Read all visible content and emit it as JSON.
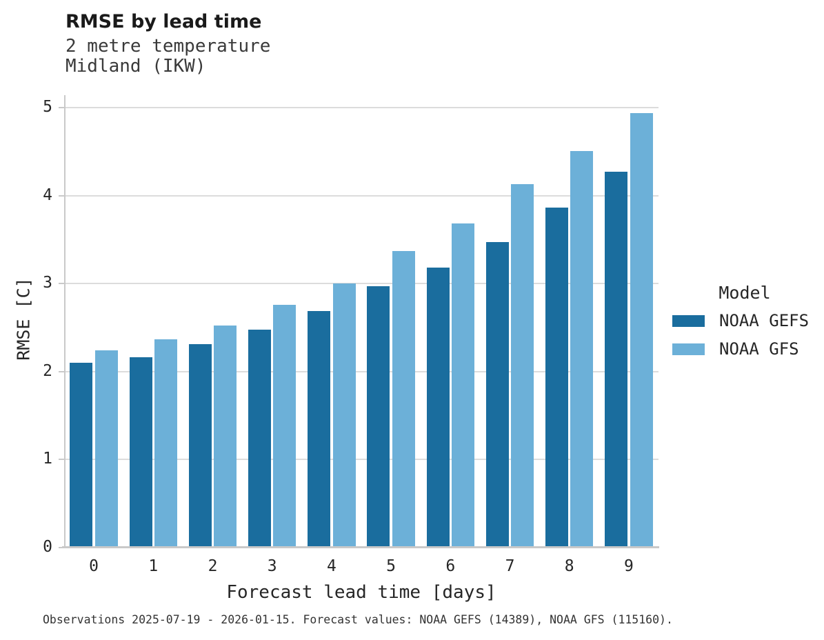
{
  "header": {
    "title": "RMSE by lead time",
    "subtitle_line1": "2 metre temperature",
    "subtitle_line2": "Midland (IKW)"
  },
  "chart_data": {
    "type": "bar",
    "title": "RMSE by lead time",
    "subtitle": [
      "2 metre temperature",
      "Midland (IKW)"
    ],
    "xlabel": "Forecast lead time [days]",
    "ylabel": "RMSE [C]",
    "categories": [
      "0",
      "1",
      "2",
      "3",
      "4",
      "5",
      "6",
      "7",
      "8",
      "9"
    ],
    "series": [
      {
        "name": "NOAA GEFS",
        "color": "#1a6d9e",
        "values": [
          2.1,
          2.16,
          2.31,
          2.48,
          2.69,
          2.97,
          3.18,
          3.47,
          3.86,
          4.27
        ]
      },
      {
        "name": "NOAA GFS",
        "color": "#6cb0d8",
        "values": [
          2.24,
          2.37,
          2.52,
          2.76,
          3.0,
          3.37,
          3.68,
          4.13,
          4.51,
          4.94
        ]
      }
    ],
    "ylim": [
      0,
      5.12
    ],
    "yticks": [
      0,
      1,
      2,
      3,
      4,
      5
    ],
    "grid": true,
    "legend_title": "Model",
    "legend_position": "right"
  },
  "legend": {
    "title": "Model",
    "items": [
      {
        "label": "NOAA GEFS",
        "color": "#1a6d9e"
      },
      {
        "label": "NOAA GFS",
        "color": "#6cb0d8"
      }
    ]
  },
  "footer": {
    "note": "Observations 2025-07-19 - 2026-01-15. Forecast values: NOAA GEFS (14389), NOAA GFS (115160)."
  }
}
